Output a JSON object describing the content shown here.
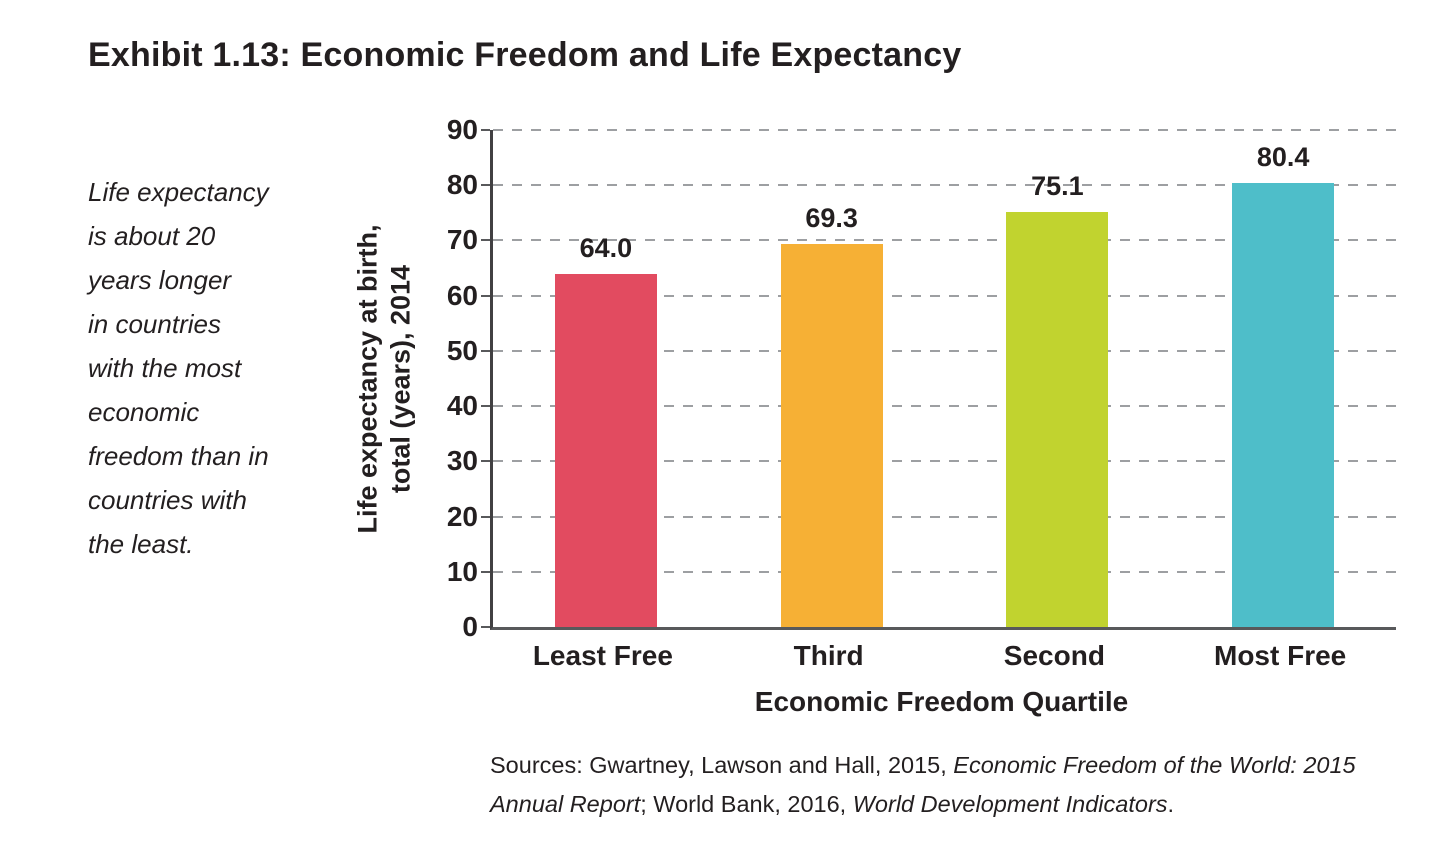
{
  "exhibit": {
    "title": "Exhibit 1.13: Economic Freedom and Life Expectancy",
    "annotation_lines": [
      "Life expectancy",
      "is about 20",
      "years longer",
      "in countries",
      "with the most",
      "economic",
      "freedom than in",
      "countries with",
      "the least."
    ],
    "sources_segments": [
      {
        "text": "Sources: Gwartney, Lawson and Hall, 2015, ",
        "italic": false
      },
      {
        "text": "Economic Freedom of the World: 2015 Annual Report",
        "italic": true
      },
      {
        "text": "; World Bank, 2016, ",
        "italic": false
      },
      {
        "text": "World Development Indicators",
        "italic": true
      },
      {
        "text": ".",
        "italic": false
      }
    ]
  },
  "chart_data": {
    "type": "bar",
    "title": "Exhibit 1.13: Economic Freedom and Life Expectancy",
    "categories": [
      "Least Free",
      "Third",
      "Second",
      "Most Free"
    ],
    "values": [
      64.0,
      69.3,
      75.1,
      80.4
    ],
    "value_labels": [
      "64.0",
      "69.3",
      "75.1",
      "80.4"
    ],
    "bar_colors": [
      "#e24b60",
      "#f6b035",
      "#c1d32f",
      "#4ebec9"
    ],
    "xlabel": "Economic Freedom Quartile",
    "ylabel_lines": [
      "Life expectancy at birth,",
      "total (years), 2014"
    ],
    "ylim": [
      0,
      90
    ],
    "yticks": [
      0,
      10,
      20,
      30,
      40,
      50,
      60,
      70,
      80,
      90
    ],
    "grid": "dashed horizontal gridlines at each ytick above 0",
    "legend": "none",
    "colors": {
      "text": "#231f20",
      "gridline": "#9d9fa2",
      "axis_line": "#414042",
      "baseline": "#58595b"
    }
  }
}
